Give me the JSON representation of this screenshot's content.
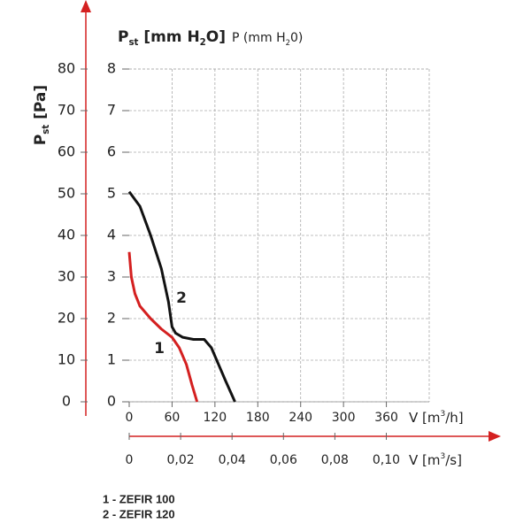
{
  "chart_data": {
    "type": "line",
    "ylabel_parts": [
      "P",
      "st",
      " [Pa]"
    ],
    "y2label_parts": [
      "P",
      "st",
      " [mm H",
      "2",
      "O]"
    ],
    "y2label_alt_parts": [
      "P (mm H",
      "2",
      "0)"
    ],
    "xlabel_parts": [
      "V [m",
      "3",
      "/h]"
    ],
    "x2label_parts": [
      "V [m",
      "3",
      "/s]"
    ],
    "xlim": [
      0,
      420
    ],
    "xticks": [
      0,
      60,
      120,
      180,
      240,
      300,
      360
    ],
    "x2lim": [
      0,
      0.1167
    ],
    "x2ticks": [
      0,
      {
        "value": 0.02,
        "label": "0,02"
      },
      {
        "value": 0.04,
        "label": "0,04"
      },
      {
        "value": 0.06,
        "label": "0,06"
      },
      {
        "value": 0.08,
        "label": "0,08"
      },
      {
        "value": 0.1,
        "label": "0,10"
      }
    ],
    "ylim": [
      0,
      80
    ],
    "yticks": [
      0,
      10,
      20,
      30,
      40,
      50,
      60,
      70,
      80
    ],
    "y2lim": [
      0,
      8
    ],
    "y2ticks": [
      0,
      1,
      2,
      3,
      4,
      5,
      6,
      7,
      8
    ],
    "grid": true,
    "series": [
      {
        "name": "1 - ZEFIR 100",
        "curve_label": "1",
        "color": "#d42020",
        "axis": "y2",
        "x": [
          0,
          3,
          8,
          15,
          30,
          45,
          60,
          70,
          80,
          88,
          95
        ],
        "values": [
          3.6,
          3.0,
          2.6,
          2.3,
          2.0,
          1.75,
          1.55,
          1.3,
          0.9,
          0.4,
          0
        ]
      },
      {
        "name": "2 - ZEFIR 120",
        "curve_label": "2",
        "color": "#111111",
        "axis": "y2",
        "x": [
          0,
          15,
          30,
          45,
          55,
          60,
          65,
          75,
          90,
          105,
          115,
          125,
          135,
          148
        ],
        "values": [
          5.05,
          4.7,
          4.0,
          3.2,
          2.4,
          1.8,
          1.65,
          1.55,
          1.5,
          1.5,
          1.3,
          0.9,
          0.5,
          0
        ]
      }
    ]
  }
}
